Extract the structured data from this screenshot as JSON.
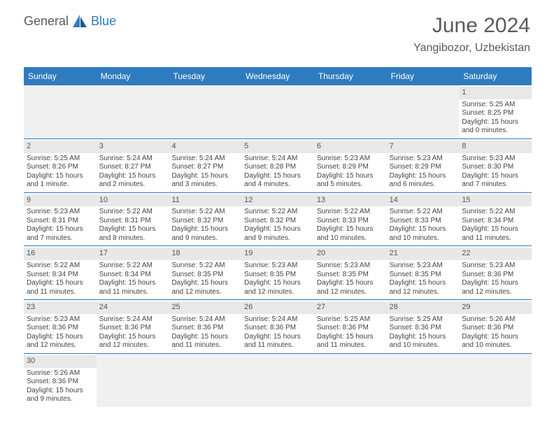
{
  "logo": {
    "general": "General",
    "blue": "Blue"
  },
  "title": "June 2024",
  "location": "Yangibozor, Uzbekistan",
  "colors": {
    "header_bg": "#2f7bbf",
    "header_fg": "#ffffff",
    "daynum_bg": "#e8e8e8",
    "empty_bg": "#f0f0f0",
    "row_divider": "#2f7bbf",
    "text": "#444444",
    "title_color": "#5a5a5a"
  },
  "weekdays": [
    "Sunday",
    "Monday",
    "Tuesday",
    "Wednesday",
    "Thursday",
    "Friday",
    "Saturday"
  ],
  "weeks": [
    [
      null,
      null,
      null,
      null,
      null,
      null,
      {
        "n": 1,
        "sr": "5:25 AM",
        "ss": "8:25 PM",
        "dl": "15 hours and 0 minutes."
      }
    ],
    [
      {
        "n": 2,
        "sr": "5:25 AM",
        "ss": "8:26 PM",
        "dl": "15 hours and 1 minute."
      },
      {
        "n": 3,
        "sr": "5:24 AM",
        "ss": "8:27 PM",
        "dl": "15 hours and 2 minutes."
      },
      {
        "n": 4,
        "sr": "5:24 AM",
        "ss": "8:27 PM",
        "dl": "15 hours and 3 minutes."
      },
      {
        "n": 5,
        "sr": "5:24 AM",
        "ss": "8:28 PM",
        "dl": "15 hours and 4 minutes."
      },
      {
        "n": 6,
        "sr": "5:23 AM",
        "ss": "8:29 PM",
        "dl": "15 hours and 5 minutes."
      },
      {
        "n": 7,
        "sr": "5:23 AM",
        "ss": "8:29 PM",
        "dl": "15 hours and 6 minutes."
      },
      {
        "n": 8,
        "sr": "5:23 AM",
        "ss": "8:30 PM",
        "dl": "15 hours and 7 minutes."
      }
    ],
    [
      {
        "n": 9,
        "sr": "5:23 AM",
        "ss": "8:31 PM",
        "dl": "15 hours and 7 minutes."
      },
      {
        "n": 10,
        "sr": "5:22 AM",
        "ss": "8:31 PM",
        "dl": "15 hours and 8 minutes."
      },
      {
        "n": 11,
        "sr": "5:22 AM",
        "ss": "8:32 PM",
        "dl": "15 hours and 9 minutes."
      },
      {
        "n": 12,
        "sr": "5:22 AM",
        "ss": "8:32 PM",
        "dl": "15 hours and 9 minutes."
      },
      {
        "n": 13,
        "sr": "5:22 AM",
        "ss": "8:33 PM",
        "dl": "15 hours and 10 minutes."
      },
      {
        "n": 14,
        "sr": "5:22 AM",
        "ss": "8:33 PM",
        "dl": "15 hours and 10 minutes."
      },
      {
        "n": 15,
        "sr": "5:22 AM",
        "ss": "8:34 PM",
        "dl": "15 hours and 11 minutes."
      }
    ],
    [
      {
        "n": 16,
        "sr": "5:22 AM",
        "ss": "8:34 PM",
        "dl": "15 hours and 11 minutes."
      },
      {
        "n": 17,
        "sr": "5:22 AM",
        "ss": "8:34 PM",
        "dl": "15 hours and 11 minutes."
      },
      {
        "n": 18,
        "sr": "5:22 AM",
        "ss": "8:35 PM",
        "dl": "15 hours and 12 minutes."
      },
      {
        "n": 19,
        "sr": "5:23 AM",
        "ss": "8:35 PM",
        "dl": "15 hours and 12 minutes."
      },
      {
        "n": 20,
        "sr": "5:23 AM",
        "ss": "8:35 PM",
        "dl": "15 hours and 12 minutes."
      },
      {
        "n": 21,
        "sr": "5:23 AM",
        "ss": "8:35 PM",
        "dl": "15 hours and 12 minutes."
      },
      {
        "n": 22,
        "sr": "5:23 AM",
        "ss": "8:36 PM",
        "dl": "15 hours and 12 minutes."
      }
    ],
    [
      {
        "n": 23,
        "sr": "5:23 AM",
        "ss": "8:36 PM",
        "dl": "15 hours and 12 minutes."
      },
      {
        "n": 24,
        "sr": "5:24 AM",
        "ss": "8:36 PM",
        "dl": "15 hours and 12 minutes."
      },
      {
        "n": 25,
        "sr": "5:24 AM",
        "ss": "8:36 PM",
        "dl": "15 hours and 11 minutes."
      },
      {
        "n": 26,
        "sr": "5:24 AM",
        "ss": "8:36 PM",
        "dl": "15 hours and 11 minutes."
      },
      {
        "n": 27,
        "sr": "5:25 AM",
        "ss": "8:36 PM",
        "dl": "15 hours and 11 minutes."
      },
      {
        "n": 28,
        "sr": "5:25 AM",
        "ss": "8:36 PM",
        "dl": "15 hours and 10 minutes."
      },
      {
        "n": 29,
        "sr": "5:26 AM",
        "ss": "8:36 PM",
        "dl": "15 hours and 10 minutes."
      }
    ],
    [
      {
        "n": 30,
        "sr": "5:26 AM",
        "ss": "8:36 PM",
        "dl": "15 hours and 9 minutes."
      },
      null,
      null,
      null,
      null,
      null,
      null
    ]
  ],
  "labels": {
    "sunrise": "Sunrise:",
    "sunset": "Sunset:",
    "daylight": "Daylight:"
  }
}
